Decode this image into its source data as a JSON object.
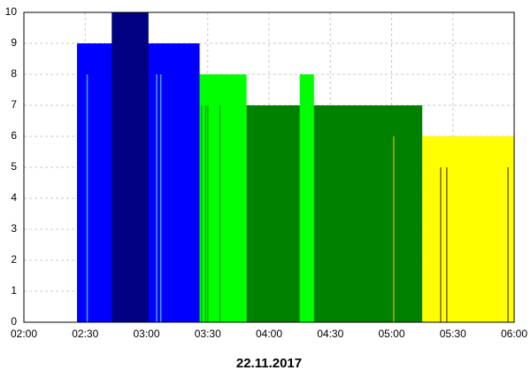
{
  "chart_data": {
    "type": "range-bar",
    "xlabel": "22.11.2017",
    "xlim": [
      "02:00",
      "06:00"
    ],
    "xticks": [
      "02:00",
      "02:30",
      "03:00",
      "03:30",
      "04:00",
      "04:30",
      "05:00",
      "05:30",
      "06:00"
    ],
    "ylim": [
      0,
      10
    ],
    "yticks": [
      0,
      1,
      2,
      3,
      4,
      5,
      6,
      7,
      8,
      9,
      10
    ],
    "grid": true,
    "bars": [
      {
        "start": "02:26",
        "end": "03:26",
        "value": 9,
        "color": "#0000ff"
      },
      {
        "start": "02:43",
        "end": "03:01",
        "value": 10,
        "color": "#000080"
      },
      {
        "start": "03:26",
        "end": "03:49",
        "value": 8,
        "color": "#00ff00"
      },
      {
        "start": "03:49",
        "end": "05:15",
        "value": 7,
        "color": "#008000"
      },
      {
        "start": "04:15",
        "end": "04:22",
        "value": 8,
        "color": "#00ff00"
      },
      {
        "start": "05:15",
        "end": "06:00",
        "value": 6,
        "color": "#ffff00"
      }
    ],
    "spikes": [
      {
        "x": "02:31",
        "value": 8,
        "color": "#4aa0ff"
      },
      {
        "x": "03:05",
        "value": 8,
        "color": "#4aa0ff"
      },
      {
        "x": "03:07",
        "value": 8,
        "color": "#4aa0ff"
      },
      {
        "x": "03:27",
        "value": 7,
        "color": "#00b000"
      },
      {
        "x": "03:29",
        "value": 7,
        "color": "#00b000"
      },
      {
        "x": "03:30",
        "value": 7,
        "color": "#00b000"
      },
      {
        "x": "03:36",
        "value": 7,
        "color": "#00b000"
      },
      {
        "x": "05:01",
        "value": 6,
        "color": "#b0b000"
      },
      {
        "x": "05:24",
        "value": 5,
        "color": "#806000"
      },
      {
        "x": "05:27",
        "value": 5,
        "color": "#806000"
      },
      {
        "x": "05:57",
        "value": 5,
        "color": "#806000"
      }
    ]
  }
}
